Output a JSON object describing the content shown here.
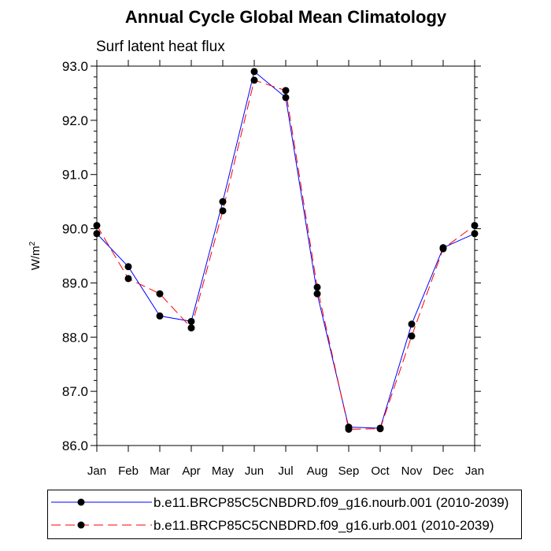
{
  "chart_data": {
    "type": "line",
    "title": "Annual Cycle Global Mean Climatology",
    "subtitle": "Surf latent heat flux",
    "xlabel": "",
    "ylabel": "W/m",
    "ylabel_sup": "2",
    "categories": [
      "Jan",
      "Feb",
      "Mar",
      "Apr",
      "May",
      "Jun",
      "Jul",
      "Aug",
      "Sep",
      "Oct",
      "Nov",
      "Dec",
      "Jan"
    ],
    "ylim": [
      86.0,
      93.0
    ],
    "yticks": [
      "86.0",
      "87.0",
      "88.0",
      "89.0",
      "90.0",
      "91.0",
      "92.0",
      "93.0"
    ],
    "series": [
      {
        "name": "b.e11.BRCP85C5CNBDRD.f09_g16.nourb.001 (2010-2039)",
        "color": "#0000ff",
        "dash": "solid",
        "values": [
          89.91,
          89.3,
          88.39,
          88.29,
          90.5,
          92.9,
          92.42,
          88.8,
          86.34,
          86.32,
          88.24,
          89.65,
          89.91
        ]
      },
      {
        "name": "b.e11.BRCP85C5CNBDRD.f09_g16.urb.001 (2010-2039)",
        "color": "#ff0000",
        "dash": "dashed",
        "values": [
          90.06,
          89.08,
          88.8,
          88.17,
          90.33,
          92.74,
          92.55,
          88.92,
          86.3,
          86.31,
          88.02,
          89.63,
          90.06
        ]
      }
    ],
    "legend": "bottom"
  }
}
